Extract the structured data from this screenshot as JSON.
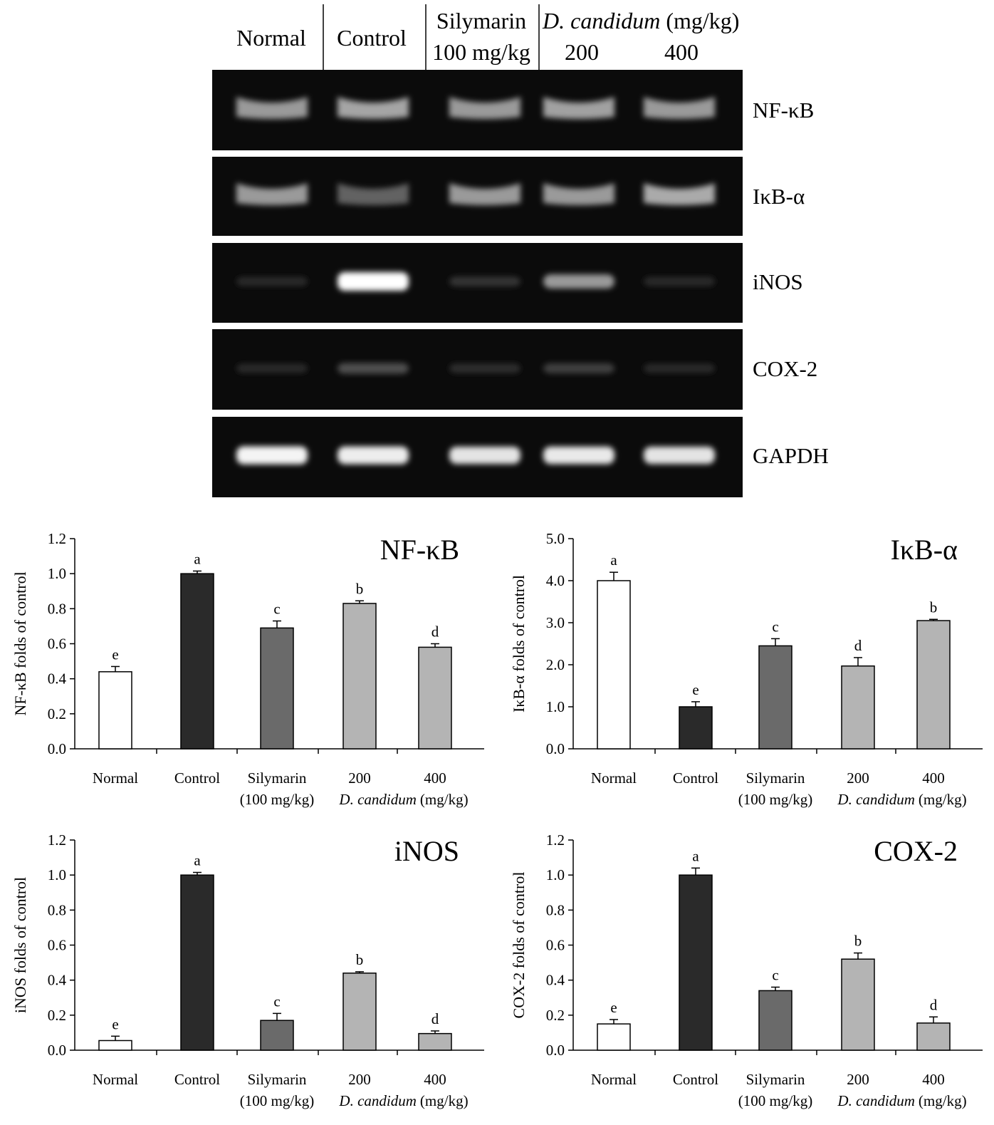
{
  "gel": {
    "lanes": [
      "Normal",
      "Control",
      "Silymarin",
      "D. candidum",
      "(mg/kg)",
      "100 mg/kg",
      "200",
      "400"
    ],
    "rows": [
      {
        "label": "NF-κB",
        "intensity": [
          0.55,
          0.6,
          0.55,
          0.58,
          0.55
        ],
        "shape": "smile"
      },
      {
        "label": "IκB-α",
        "intensity": [
          0.55,
          0.3,
          0.55,
          0.55,
          0.62
        ],
        "shape": "smile"
      },
      {
        "label": "iNOS",
        "intensity": [
          0.05,
          1.0,
          0.1,
          0.55,
          0.06
        ],
        "shape": "flat"
      },
      {
        "label": "COX-2",
        "intensity": [
          0.05,
          0.22,
          0.07,
          0.15,
          0.05
        ],
        "shape": "flat"
      },
      {
        "label": "GAPDH",
        "intensity": [
          0.95,
          0.92,
          0.88,
          0.9,
          0.88
        ],
        "shape": "flat"
      }
    ]
  },
  "chart_data": [
    {
      "type": "bar",
      "title": "NF-κB",
      "ylabel": "NF-κB folds of control",
      "xlabel": "",
      "ylim": [
        0,
        1.2
      ],
      "yticks": [
        "0.0",
        "0.2",
        "0.4",
        "0.6",
        "0.8",
        "1.0",
        "1.2"
      ],
      "categories": [
        "Normal",
        "Control",
        "Silymarin",
        "200",
        "400"
      ],
      "sublabels": [
        "(100 mg/kg)",
        "D. candidum",
        "(mg/kg)"
      ],
      "values": [
        0.44,
        1.0,
        0.69,
        0.83,
        0.58
      ],
      "errors": [
        0.03,
        0.015,
        0.04,
        0.015,
        0.02
      ],
      "letters": [
        "e",
        "a",
        "c",
        "b",
        "d"
      ],
      "colors": [
        "#ffffff",
        "#2a2a2a",
        "#6a6a6a",
        "#b4b4b4",
        "#b4b4b4"
      ]
    },
    {
      "type": "bar",
      "title": "IκB-α",
      "ylabel": "IκB-α folds of control",
      "xlabel": "",
      "ylim": [
        0,
        5.0
      ],
      "yticks": [
        "0.0",
        "1.0",
        "2.0",
        "3.0",
        "4.0",
        "5.0"
      ],
      "categories": [
        "Normal",
        "Control",
        "Silymarin",
        "200",
        "400"
      ],
      "sublabels": [
        "(100 mg/kg)",
        "D. candidum",
        "(mg/kg)"
      ],
      "values": [
        4.0,
        1.0,
        2.45,
        1.97,
        3.05
      ],
      "errors": [
        0.2,
        0.12,
        0.17,
        0.2,
        0.03
      ],
      "letters": [
        "a",
        "e",
        "c",
        "d",
        "b"
      ],
      "colors": [
        "#ffffff",
        "#2a2a2a",
        "#6a6a6a",
        "#b4b4b4",
        "#b4b4b4"
      ]
    },
    {
      "type": "bar",
      "title": "iNOS",
      "ylabel": "iNOS folds of control",
      "xlabel": "",
      "ylim": [
        0,
        1.2
      ],
      "yticks": [
        "0.0",
        "0.2",
        "0.4",
        "0.6",
        "0.8",
        "1.0",
        "1.2"
      ],
      "categories": [
        "Normal",
        "Control",
        "Silymarin",
        "200",
        "400"
      ],
      "sublabels": [
        "(100 mg/kg)",
        "D. candidum",
        "(mg/kg)"
      ],
      "values": [
        0.055,
        1.0,
        0.17,
        0.44,
        0.095
      ],
      "errors": [
        0.025,
        0.015,
        0.04,
        0.008,
        0.015
      ],
      "letters": [
        "e",
        "a",
        "c",
        "b",
        "d"
      ],
      "colors": [
        "#ffffff",
        "#2a2a2a",
        "#6a6a6a",
        "#b4b4b4",
        "#b4b4b4"
      ]
    },
    {
      "type": "bar",
      "title": "COX-2",
      "ylabel": "COX-2 folds of control",
      "xlabel": "",
      "ylim": [
        0,
        1.2
      ],
      "yticks": [
        "0.0",
        "0.2",
        "0.4",
        "0.6",
        "0.8",
        "1.0",
        "1.2"
      ],
      "categories": [
        "Normal",
        "Control",
        "Silymarin",
        "200",
        "400"
      ],
      "sublabels": [
        "(100 mg/kg)",
        "D. candidum",
        "(mg/kg)"
      ],
      "values": [
        0.15,
        1.0,
        0.34,
        0.52,
        0.155
      ],
      "errors": [
        0.025,
        0.04,
        0.02,
        0.035,
        0.035
      ],
      "letters": [
        "e",
        "a",
        "c",
        "b",
        "d"
      ],
      "colors": [
        "#ffffff",
        "#2a2a2a",
        "#6a6a6a",
        "#b4b4b4",
        "#b4b4b4"
      ]
    }
  ]
}
